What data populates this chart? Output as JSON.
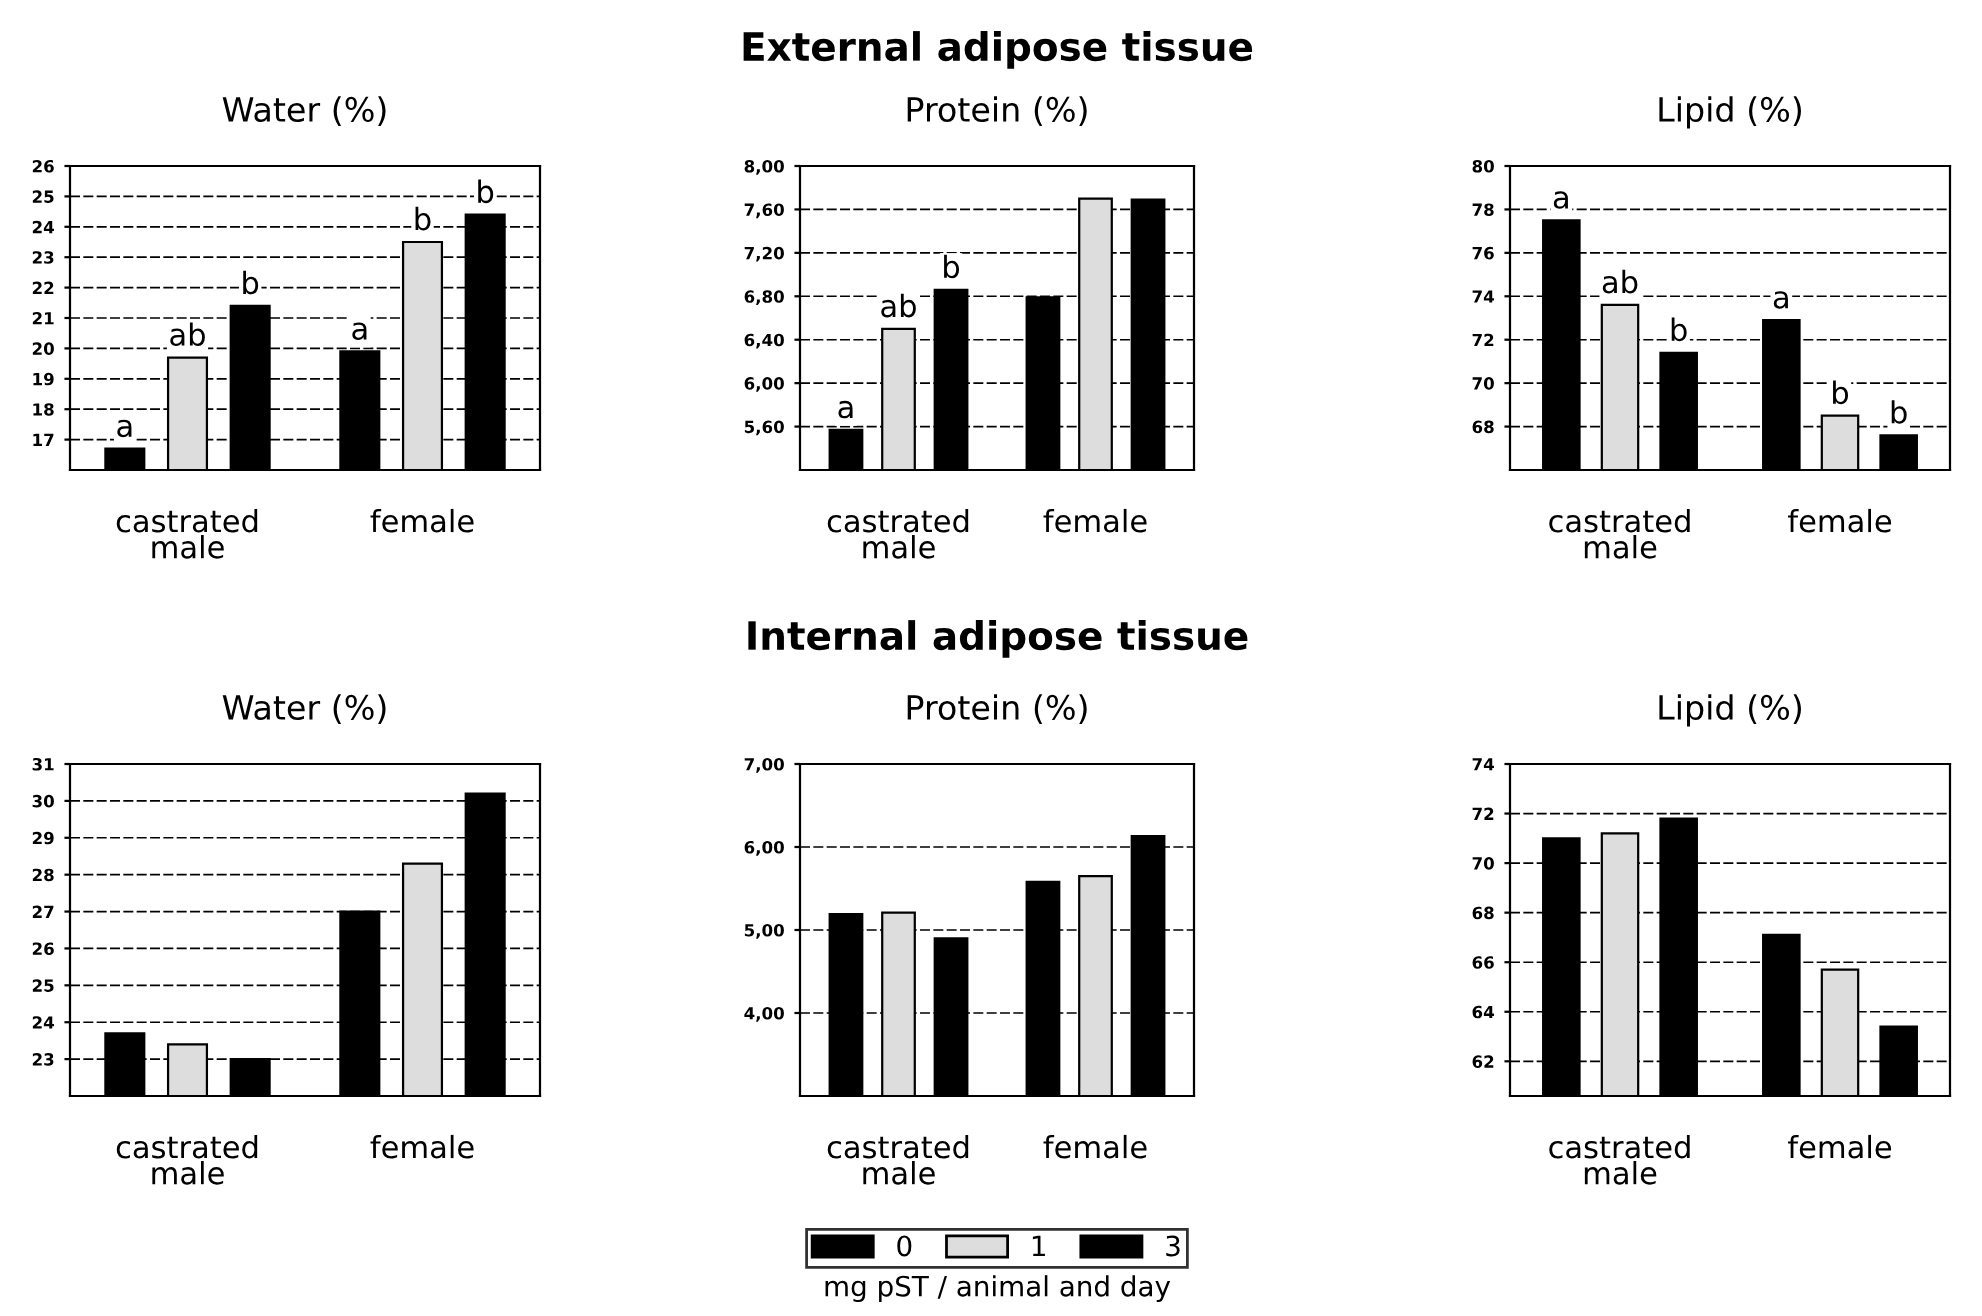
{
  "chart_data": [
    {
      "type": "bar",
      "title": "Water (%)",
      "categories": [
        "castrated\nmale",
        "female"
      ],
      "ylim": [
        16,
        26
      ],
      "yticks": [
        17,
        18,
        19,
        20,
        21,
        22,
        23,
        24,
        25,
        26
      ],
      "grid": "y",
      "series": [
        {
          "color": "#000000",
          "values": [
            16.7,
            19.9
          ],
          "value_labels": [
            "a",
            "a"
          ]
        },
        {
          "color": "#dddddd",
          "values": [
            19.7,
            23.5
          ],
          "value_labels": [
            "ab",
            "b"
          ]
        },
        {
          "color": "#000000",
          "values": [
            21.4,
            24.4
          ],
          "value_labels": [
            "b",
            "b"
          ]
        }
      ]
    },
    {
      "type": "bar",
      "annotations": [
        "External adipose tissue"
      ],
      "title": "Protein (%)",
      "categories": [
        "castrated\nmale",
        "female"
      ],
      "ylim": [
        5.2,
        8.0
      ],
      "yticks": [
        {
          "value": 5.6,
          "label": "5,60"
        },
        {
          "value": 6.0,
          "label": "6,00"
        },
        {
          "value": 6.4,
          "label": "6,40"
        },
        {
          "value": 6.8,
          "label": "6,80"
        },
        {
          "value": 7.2,
          "label": "7,20"
        },
        {
          "value": 7.6,
          "label": "7,60"
        },
        {
          "value": 8.0,
          "label": "8,00"
        }
      ],
      "grid": "y",
      "series": [
        {
          "color": "#000000",
          "values": [
            5.57,
            6.79
          ],
          "value_labels": [
            "a",
            null
          ]
        },
        {
          "color": "#dddddd",
          "values": [
            6.5,
            7.7
          ],
          "value_labels": [
            "ab",
            null
          ]
        },
        {
          "color": "#000000",
          "values": [
            6.86,
            7.69
          ],
          "value_labels": [
            "b",
            null
          ]
        }
      ]
    },
    {
      "type": "bar",
      "title": "Lipid (%)",
      "categories": [
        "castrated\nmale",
        "female"
      ],
      "ylim": [
        66,
        80
      ],
      "yticks": [
        68,
        70,
        72,
        74,
        76,
        78,
        80
      ],
      "grid": "y",
      "series": [
        {
          "color": "#000000",
          "values": [
            77.5,
            72.9
          ],
          "value_labels": [
            "a",
            "a"
          ]
        },
        {
          "color": "#dddddd",
          "values": [
            73.6,
            68.5
          ],
          "value_labels": [
            "ab",
            "b"
          ]
        },
        {
          "color": "#000000",
          "values": [
            71.4,
            67.6
          ],
          "value_labels": [
            "b",
            "b"
          ]
        }
      ]
    },
    {
      "type": "bar",
      "title": "Water (%)",
      "categories": [
        "castrated\nmale",
        "female"
      ],
      "ylim": [
        22,
        31
      ],
      "yticks": [
        23,
        24,
        25,
        26,
        27,
        28,
        29,
        30,
        31
      ],
      "grid": "y",
      "series": [
        {
          "color": "#000000",
          "values": [
            23.7,
            27.0
          ]
        },
        {
          "color": "#dddddd",
          "values": [
            23.4,
            28.3
          ]
        },
        {
          "color": "#000000",
          "values": [
            23.0,
            30.2
          ]
        }
      ]
    },
    {
      "type": "bar",
      "annotations": [
        "Internal adipose tissue"
      ],
      "title": "Protein (%)",
      "categories": [
        "castrated\nmale",
        "female"
      ],
      "ylim": [
        3.0,
        7.0
      ],
      "yticks": [
        {
          "value": 4.0,
          "label": "4,00"
        },
        {
          "value": 5.0,
          "label": "5,00"
        },
        {
          "value": 6.0,
          "label": "6,00"
        },
        {
          "value": 7.0,
          "label": "7,00"
        }
      ],
      "grid": "y",
      "legend": "bottom",
      "legend_title": "mg pST / animal and day",
      "series": [
        {
          "name": "0",
          "color": "#000000",
          "values": [
            5.19,
            5.58
          ]
        },
        {
          "name": "1",
          "color": "#dddddd",
          "values": [
            5.21,
            5.65
          ]
        },
        {
          "name": "3",
          "color": "#000000",
          "values": [
            4.9,
            6.13
          ]
        }
      ]
    },
    {
      "type": "bar",
      "title": "Lipid (%)",
      "categories": [
        "castrated\nmale",
        "female"
      ],
      "ylim": [
        60.6,
        74
      ],
      "yticks": [
        62,
        64,
        66,
        68,
        70,
        72,
        74
      ],
      "grid": "y",
      "series": [
        {
          "color": "#000000",
          "values": [
            71.0,
            67.1
          ]
        },
        {
          "color": "#dddddd",
          "values": [
            71.2,
            65.7
          ]
        },
        {
          "color": "#000000",
          "values": [
            71.8,
            63.4
          ]
        }
      ]
    }
  ]
}
